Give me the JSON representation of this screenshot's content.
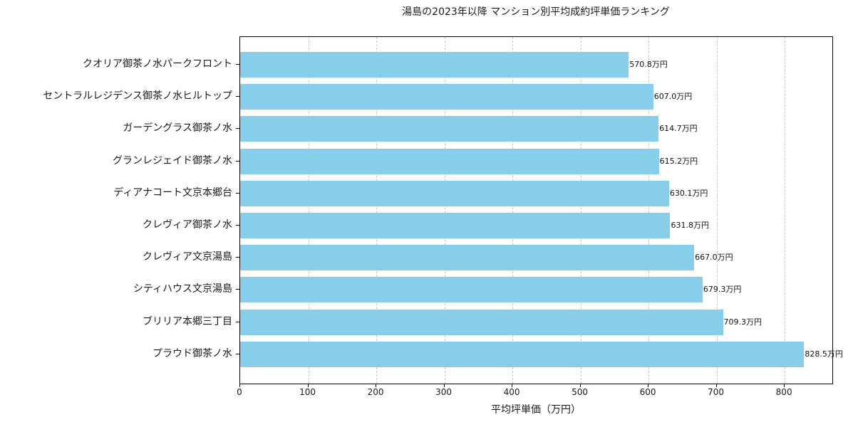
{
  "chart_data": {
    "type": "bar",
    "orientation": "horizontal",
    "title": "湯島の2023年以降 マンション別平均成約坪単価ランキング",
    "xlabel": "平均坪単価（万円）",
    "ylabel": "",
    "xlim": [
      0,
      870
    ],
    "xticks": [
      0,
      100,
      200,
      300,
      400,
      500,
      600,
      700,
      800
    ],
    "grid": {
      "x": true,
      "y": false,
      "style": "dashed"
    },
    "bar_color": "#87ceeb",
    "value_suffix": "万円",
    "categories": [
      "クオリア御茶ノ水パークフロント",
      "セントラルレジデンス御茶ノ水ヒルトップ",
      "ガーデングラス御茶ノ水",
      "グランレジェイド御茶ノ水",
      "ディアナコート文京本郷台",
      "クレヴィア御茶ノ水",
      "クレヴィア文京湯島",
      "シティハウス文京湯島",
      "ブリリア本郷三丁目",
      "プラウド御茶ノ水"
    ],
    "values": [
      570.8,
      607.0,
      614.7,
      615.2,
      630.1,
      631.8,
      667.0,
      679.3,
      709.3,
      828.5
    ],
    "labels": [
      "570.8万円",
      "607.0万円",
      "614.7万円",
      "615.2万円",
      "630.1万円",
      "631.8万円",
      "667.0万円",
      "679.3万円",
      "709.3万円",
      "828.5万円"
    ]
  }
}
